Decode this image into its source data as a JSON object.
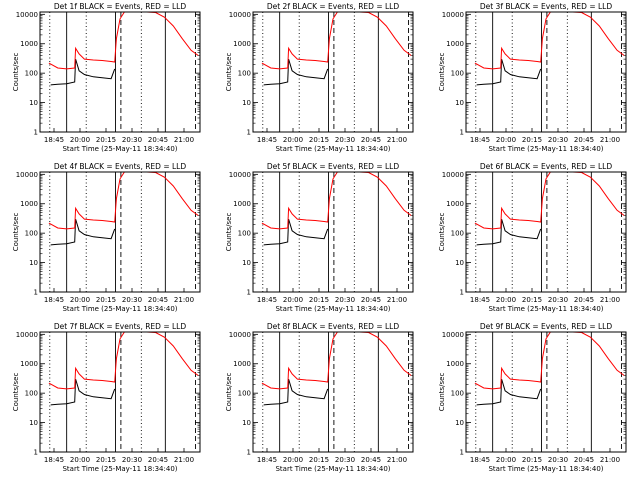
{
  "figure": {
    "xlabel": "Start Time (25-May-11 18:34:40)",
    "ylabel": "Counts/sec",
    "x_tick_labels": [
      "18:45",
      "20:00",
      "20:15",
      "20:30",
      "20:45",
      "21:00"
    ],
    "y_tick_labels": [
      "1",
      "10",
      "100",
      "1000",
      "10000"
    ],
    "colors": {
      "events": "#000000",
      "lld": "#ff0000",
      "frame": "#000000"
    }
  },
  "chart_data": [
    {
      "type": "line",
      "title": "Det 1f BLACK = Events, RED = LLD",
      "xlabel": "Start Time (25-May-11 18:34:40)",
      "ylabel": "Counts/sec",
      "y_scale": "log",
      "ylim": [
        1,
        12000
      ],
      "xlim": [
        0,
        180
      ],
      "x_units": "minutes since 18:34:40",
      "vlines": {
        "solid": [
          30,
          85,
          141
        ],
        "dotted": [
          11,
          52,
          114
        ],
        "dashed": [
          91,
          175
        ]
      },
      "series": [
        {
          "name": "Events",
          "color": "#000000",
          "x": [
            12,
            20,
            30,
            39,
            40,
            44,
            50,
            60,
            70,
            80,
            84
          ],
          "y": [
            40,
            42,
            44,
            50,
            300,
            120,
            90,
            75,
            70,
            65,
            140
          ]
        },
        {
          "name": "LLD",
          "color": "#ff0000",
          "x": [
            10,
            20,
            30,
            39,
            40,
            44,
            50,
            60,
            70,
            80,
            84,
            86,
            90,
            95,
            100,
            110,
            120,
            130,
            140,
            150,
            160,
            170,
            178
          ],
          "y": [
            220,
            150,
            140,
            150,
            700,
            450,
            300,
            280,
            270,
            250,
            240,
            1500,
            7000,
            12000,
            12000,
            12000,
            12000,
            11500,
            8000,
            4000,
            1500,
            600,
            400
          ]
        }
      ]
    },
    {
      "type": "line",
      "title": "Det 2f BLACK = Events, RED = LLD",
      "xlabel": "Start Time (25-May-11 18:34:40)",
      "ylabel": "Counts/sec",
      "y_scale": "log",
      "ylim": [
        1,
        12000
      ],
      "xlim": [
        0,
        180
      ],
      "x_units": "minutes since 18:34:40",
      "vlines": {
        "solid": [
          30,
          85,
          141
        ],
        "dotted": [
          11,
          52,
          114
        ],
        "dashed": [
          91,
          175
        ]
      },
      "series": [
        {
          "name": "Events",
          "color": "#000000",
          "x": [
            12,
            20,
            30,
            39,
            40,
            44,
            50,
            60,
            70,
            80,
            84
          ],
          "y": [
            40,
            42,
            44,
            50,
            300,
            120,
            90,
            75,
            70,
            65,
            140
          ]
        },
        {
          "name": "LLD",
          "color": "#ff0000",
          "x": [
            10,
            20,
            30,
            39,
            40,
            44,
            50,
            60,
            70,
            80,
            84,
            86,
            90,
            95,
            100,
            110,
            120,
            130,
            140,
            150,
            160,
            170,
            178
          ],
          "y": [
            220,
            150,
            140,
            150,
            700,
            450,
            300,
            280,
            270,
            250,
            240,
            1500,
            7000,
            12000,
            12000,
            12000,
            12000,
            11500,
            8000,
            4000,
            1500,
            600,
            400
          ]
        }
      ]
    },
    {
      "type": "line",
      "title": "Det 3f BLACK = Events, RED = LLD",
      "xlabel": "Start Time (25-May-11 18:34:40)",
      "ylabel": "Counts/sec",
      "y_scale": "log",
      "ylim": [
        1,
        12000
      ],
      "xlim": [
        0,
        180
      ],
      "x_units": "minutes since 18:34:40",
      "vlines": {
        "solid": [
          30,
          85,
          141
        ],
        "dotted": [
          11,
          52,
          114
        ],
        "dashed": [
          91,
          175
        ]
      },
      "series": [
        {
          "name": "Events",
          "color": "#000000",
          "x": [
            12,
            20,
            30,
            39,
            40,
            44,
            50,
            60,
            70,
            80,
            84
          ],
          "y": [
            40,
            42,
            44,
            50,
            300,
            120,
            90,
            75,
            70,
            65,
            140
          ]
        },
        {
          "name": "LLD",
          "color": "#ff0000",
          "x": [
            10,
            20,
            30,
            39,
            40,
            44,
            50,
            60,
            70,
            80,
            84,
            86,
            90,
            95,
            100,
            110,
            120,
            130,
            140,
            150,
            160,
            170,
            178
          ],
          "y": [
            220,
            150,
            140,
            150,
            700,
            450,
            300,
            280,
            270,
            250,
            240,
            1500,
            7000,
            12000,
            12000,
            12000,
            12000,
            11500,
            8000,
            4000,
            1500,
            600,
            400
          ]
        }
      ]
    },
    {
      "type": "line",
      "title": "Det 4f BLACK = Events, RED = LLD",
      "xlabel": "Start Time (25-May-11 18:34:40)",
      "ylabel": "Counts/sec",
      "y_scale": "log",
      "ylim": [
        1,
        12000
      ],
      "xlim": [
        0,
        180
      ],
      "x_units": "minutes since 18:34:40",
      "vlines": {
        "solid": [
          30,
          85,
          141
        ],
        "dotted": [
          11,
          52,
          114
        ],
        "dashed": [
          91,
          175
        ]
      },
      "series": [
        {
          "name": "Events",
          "color": "#000000",
          "x": [
            12,
            20,
            30,
            39,
            40,
            44,
            50,
            60,
            70,
            80,
            84
          ],
          "y": [
            40,
            42,
            44,
            50,
            300,
            120,
            90,
            75,
            70,
            65,
            140
          ]
        },
        {
          "name": "LLD",
          "color": "#ff0000",
          "x": [
            10,
            20,
            30,
            39,
            40,
            44,
            50,
            60,
            70,
            80,
            84,
            86,
            90,
            95,
            100,
            110,
            120,
            130,
            140,
            150,
            160,
            170,
            178
          ],
          "y": [
            220,
            150,
            140,
            150,
            700,
            450,
            300,
            280,
            270,
            250,
            240,
            1500,
            7000,
            12000,
            12000,
            12000,
            12000,
            11500,
            8000,
            4000,
            1500,
            600,
            400
          ]
        }
      ]
    },
    {
      "type": "line",
      "title": "Det 5f BLACK = Events, RED = LLD",
      "xlabel": "Start Time (25-May-11 18:34:40)",
      "ylabel": "Counts/sec",
      "y_scale": "log",
      "ylim": [
        1,
        12000
      ],
      "xlim": [
        0,
        180
      ],
      "x_units": "minutes since 18:34:40",
      "vlines": {
        "solid": [
          30,
          85,
          141
        ],
        "dotted": [
          11,
          52,
          114
        ],
        "dashed": [
          91,
          175
        ]
      },
      "series": [
        {
          "name": "Events",
          "color": "#000000",
          "x": [
            12,
            20,
            30,
            39,
            40,
            44,
            50,
            60,
            70,
            80,
            84
          ],
          "y": [
            40,
            42,
            44,
            50,
            300,
            120,
            90,
            75,
            70,
            65,
            140
          ]
        },
        {
          "name": "LLD",
          "color": "#ff0000",
          "x": [
            10,
            20,
            30,
            39,
            40,
            44,
            50,
            60,
            70,
            80,
            84,
            86,
            90,
            95,
            100,
            110,
            120,
            130,
            140,
            150,
            160,
            170,
            178
          ],
          "y": [
            220,
            150,
            140,
            150,
            700,
            450,
            300,
            280,
            270,
            250,
            240,
            1500,
            7000,
            12000,
            12000,
            12000,
            12000,
            11500,
            8000,
            4000,
            1500,
            600,
            400
          ]
        }
      ]
    },
    {
      "type": "line",
      "title": "Det 6f BLACK = Events, RED = LLD",
      "xlabel": "Start Time (25-May-11 18:34:40)",
      "ylabel": "Counts/sec",
      "y_scale": "log",
      "ylim": [
        1,
        12000
      ],
      "xlim": [
        0,
        180
      ],
      "x_units": "minutes since 18:34:40",
      "vlines": {
        "solid": [
          30,
          85,
          141
        ],
        "dotted": [
          11,
          52,
          114
        ],
        "dashed": [
          91,
          175
        ]
      },
      "series": [
        {
          "name": "Events",
          "color": "#000000",
          "x": [
            12,
            20,
            30,
            39,
            40,
            44,
            50,
            60,
            70,
            80,
            84
          ],
          "y": [
            40,
            42,
            44,
            50,
            300,
            120,
            90,
            75,
            70,
            65,
            140
          ]
        },
        {
          "name": "LLD",
          "color": "#ff0000",
          "x": [
            10,
            20,
            30,
            39,
            40,
            44,
            50,
            60,
            70,
            80,
            84,
            86,
            90,
            95,
            100,
            110,
            120,
            130,
            140,
            150,
            160,
            170,
            178
          ],
          "y": [
            220,
            150,
            140,
            150,
            700,
            450,
            300,
            280,
            270,
            250,
            240,
            1500,
            7000,
            12000,
            12000,
            12000,
            12000,
            11500,
            8000,
            4000,
            1500,
            600,
            400
          ]
        }
      ]
    },
    {
      "type": "line",
      "title": "Det 7f BLACK = Events, RED = LLD",
      "xlabel": "Start Time (25-May-11 18:34:40)",
      "ylabel": "Counts/sec",
      "y_scale": "log",
      "ylim": [
        1,
        12000
      ],
      "xlim": [
        0,
        180
      ],
      "x_units": "minutes since 18:34:40",
      "vlines": {
        "solid": [
          30,
          85,
          141
        ],
        "dotted": [
          11,
          52,
          114
        ],
        "dashed": [
          91,
          175
        ]
      },
      "series": [
        {
          "name": "Events",
          "color": "#000000",
          "x": [
            12,
            20,
            30,
            39,
            40,
            44,
            50,
            60,
            70,
            80,
            84
          ],
          "y": [
            40,
            42,
            44,
            50,
            300,
            120,
            90,
            75,
            70,
            65,
            140
          ]
        },
        {
          "name": "LLD",
          "color": "#ff0000",
          "x": [
            10,
            20,
            30,
            39,
            40,
            44,
            50,
            60,
            70,
            80,
            84,
            86,
            90,
            95,
            100,
            110,
            120,
            130,
            140,
            150,
            160,
            170,
            178
          ],
          "y": [
            220,
            150,
            140,
            150,
            700,
            450,
            300,
            280,
            270,
            250,
            240,
            1500,
            7000,
            12000,
            12000,
            12000,
            12000,
            11500,
            8000,
            4000,
            1500,
            600,
            400
          ]
        }
      ]
    },
    {
      "type": "line",
      "title": "Det 8f BLACK = Events, RED = LLD",
      "xlabel": "Start Time (25-May-11 18:34:40)",
      "ylabel": "Counts/sec",
      "y_scale": "log",
      "ylim": [
        1,
        12000
      ],
      "xlim": [
        0,
        180
      ],
      "x_units": "minutes since 18:34:40",
      "vlines": {
        "solid": [
          30,
          85,
          141
        ],
        "dotted": [
          11,
          52,
          114
        ],
        "dashed": [
          91,
          175
        ]
      },
      "series": [
        {
          "name": "Events",
          "color": "#000000",
          "x": [
            12,
            20,
            30,
            39,
            40,
            44,
            50,
            60,
            70,
            80,
            84
          ],
          "y": [
            40,
            42,
            44,
            50,
            300,
            120,
            90,
            75,
            70,
            65,
            140
          ]
        },
        {
          "name": "LLD",
          "color": "#ff0000",
          "x": [
            10,
            20,
            30,
            39,
            40,
            44,
            50,
            60,
            70,
            80,
            84,
            86,
            90,
            95,
            100,
            110,
            120,
            130,
            140,
            150,
            160,
            170,
            178
          ],
          "y": [
            220,
            150,
            140,
            150,
            700,
            450,
            300,
            280,
            270,
            250,
            240,
            1500,
            7000,
            12000,
            12000,
            12000,
            12000,
            11500,
            8000,
            4000,
            1500,
            600,
            400
          ]
        }
      ]
    },
    {
      "type": "line",
      "title": "Det 9f BLACK = Events, RED = LLD",
      "xlabel": "Start Time (25-May-11 18:34:40)",
      "ylabel": "Counts/sec",
      "y_scale": "log",
      "ylim": [
        1,
        12000
      ],
      "xlim": [
        0,
        180
      ],
      "x_units": "minutes since 18:34:40",
      "vlines": {
        "solid": [
          30,
          85,
          141
        ],
        "dotted": [
          11,
          52,
          114
        ],
        "dashed": [
          91,
          175
        ]
      },
      "series": [
        {
          "name": "Events",
          "color": "#000000",
          "x": [
            12,
            20,
            30,
            39,
            40,
            44,
            50,
            60,
            70,
            80,
            84
          ],
          "y": [
            40,
            42,
            44,
            50,
            300,
            120,
            90,
            75,
            70,
            65,
            140
          ]
        },
        {
          "name": "LLD",
          "color": "#ff0000",
          "x": [
            10,
            20,
            30,
            39,
            40,
            44,
            50,
            60,
            70,
            80,
            84,
            86,
            90,
            95,
            100,
            110,
            120,
            130,
            140,
            150,
            160,
            170,
            178
          ],
          "y": [
            220,
            150,
            140,
            150,
            700,
            450,
            300,
            280,
            270,
            250,
            240,
            1500,
            7000,
            12000,
            12000,
            12000,
            12000,
            11500,
            8000,
            4000,
            1500,
            600,
            400
          ]
        }
      ]
    }
  ]
}
